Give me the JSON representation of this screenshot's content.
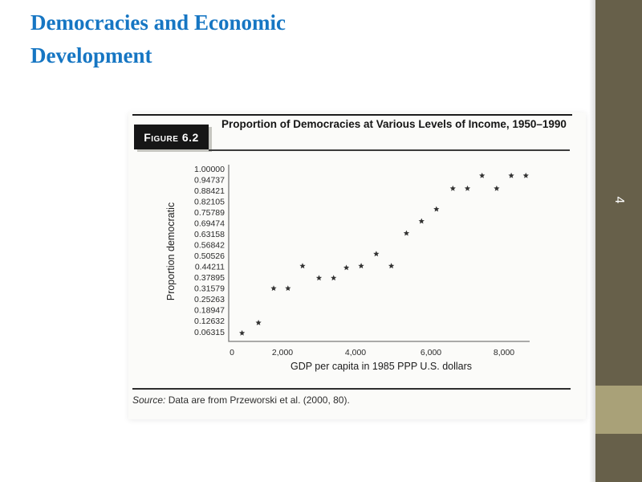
{
  "slide": {
    "title": "Democracies and Economic Development",
    "page_number": "4"
  },
  "figure": {
    "label": "Figure 6.2",
    "title": "Proportion of Democracies at Various Levels of Income, 1950–1990",
    "source_prefix": "Source:",
    "source_text": "Data are from Przeworski et al. (2000, 80)."
  },
  "chart_data": {
    "type": "scatter",
    "title": "Proportion of Democracies at Various Levels of Income, 1950–1990",
    "xlabel": "GDP per capita in 1985 PPP U.S. dollars",
    "ylabel": "Proportion democratic",
    "marker": "star",
    "legend": "none",
    "grid": false,
    "xlim": [
      0,
      8800
    ],
    "ylim": [
      0,
      1.0
    ],
    "x_tick_labels": [
      "0",
      "2,000",
      "4,000",
      "6,000",
      "8,000"
    ],
    "x_tick_values": [
      0,
      2000,
      4000,
      6000,
      8000
    ],
    "y_tick_labels": [
      "1.00000",
      "0.94737",
      "0.88421",
      "0.82105",
      "0.75789",
      "0.69474",
      "0.63158",
      "0.56842",
      "0.50526",
      "0.44211",
      "0.37895",
      "0.31579",
      "0.25263",
      "0.18947",
      "0.12632",
      "0.06315"
    ],
    "points": [
      {
        "x": 400,
        "y": 0.06
      },
      {
        "x": 1050,
        "y": 0.12
      },
      {
        "x": 1650,
        "y": 0.32
      },
      {
        "x": 2150,
        "y": 0.32
      },
      {
        "x": 2550,
        "y": 0.45
      },
      {
        "x": 3000,
        "y": 0.38
      },
      {
        "x": 3400,
        "y": 0.38
      },
      {
        "x": 3750,
        "y": 0.44
      },
      {
        "x": 4150,
        "y": 0.45
      },
      {
        "x": 4550,
        "y": 0.52
      },
      {
        "x": 4950,
        "y": 0.45
      },
      {
        "x": 5350,
        "y": 0.64
      },
      {
        "x": 5750,
        "y": 0.71
      },
      {
        "x": 6150,
        "y": 0.78
      },
      {
        "x": 6600,
        "y": 0.9
      },
      {
        "x": 7000,
        "y": 0.9
      },
      {
        "x": 7400,
        "y": 0.97
      },
      {
        "x": 7800,
        "y": 0.9
      },
      {
        "x": 8200,
        "y": 0.97
      },
      {
        "x": 8600,
        "y": 0.97
      }
    ]
  },
  "colors": {
    "title_blue": "#1676c3",
    "sidebar_olive": "#67604a",
    "sidebar_khaki": "#a9a178",
    "figure_label_bg": "#161616",
    "marker_color": "#333333"
  }
}
